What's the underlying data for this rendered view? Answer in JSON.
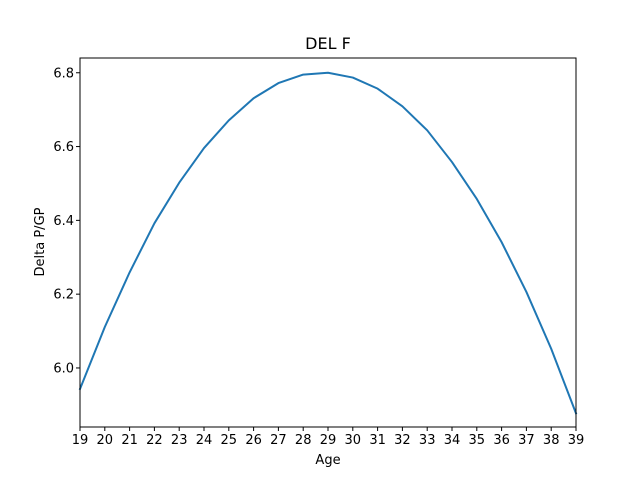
{
  "chart_data": {
    "type": "line",
    "title": "DEL F",
    "xlabel": "Age",
    "ylabel": "Delta P/GP",
    "x": [
      19,
      20,
      21,
      22,
      23,
      24,
      25,
      26,
      27,
      28,
      29,
      30,
      31,
      32,
      33,
      34,
      35,
      36,
      37,
      38,
      39
    ],
    "series": [
      {
        "values": [
          5.943,
          6.111,
          6.259,
          6.392,
          6.502,
          6.596,
          6.671,
          6.731,
          6.772,
          6.795,
          6.8,
          6.787,
          6.757,
          6.709,
          6.644,
          6.558,
          6.458,
          6.341,
          6.206,
          6.052,
          5.877
        ],
        "color": "#1f77b4"
      }
    ],
    "xlim": [
      19,
      39
    ],
    "ylim": [
      5.84,
      6.84
    ],
    "xticks": [
      "19",
      "20",
      "21",
      "22",
      "23",
      "24",
      "25",
      "26",
      "27",
      "28",
      "29",
      "30",
      "31",
      "32",
      "33",
      "34",
      "35",
      "36",
      "37",
      "38",
      "39"
    ],
    "yticks": [
      "6.0",
      "6.2",
      "6.4",
      "6.6",
      "6.8"
    ],
    "grid": false,
    "legend": "none"
  }
}
